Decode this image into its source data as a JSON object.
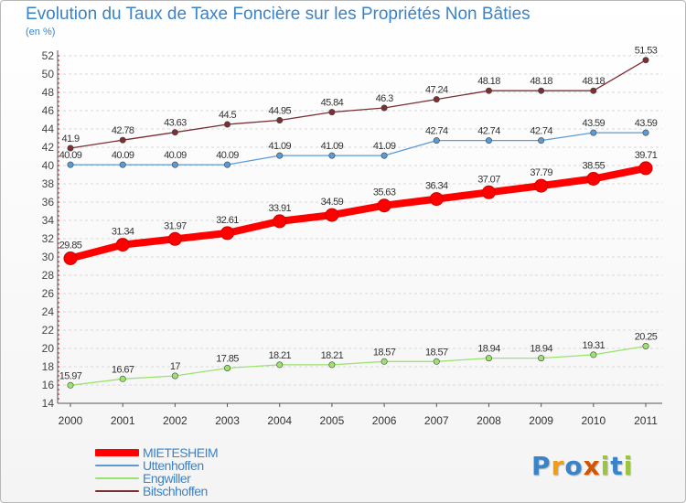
{
  "title": "Evolution du Taux de Taxe Foncière sur les Propriétés Non Bâties",
  "unit_label": "(en %)",
  "logo_text": "Proxiti",
  "colors": {
    "title": "#3a83c6",
    "grid": "#d8d8d8",
    "axis": "#555555"
  },
  "chart_data": {
    "type": "line",
    "x": [
      "2000",
      "2001",
      "2002",
      "2003",
      "2004",
      "2005",
      "2006",
      "2007",
      "2008",
      "2009",
      "2010",
      "2011"
    ],
    "ylim": [
      14,
      52
    ],
    "yticks": [
      14,
      16,
      18,
      20,
      22,
      24,
      26,
      28,
      30,
      32,
      34,
      36,
      38,
      40,
      42,
      44,
      46,
      48,
      50,
      52
    ],
    "grid": true,
    "legend_position": "bottom-left",
    "series": [
      {
        "name": "MIETESHEIM",
        "color": "#ff0000",
        "values": [
          29.85,
          31.34,
          31.97,
          32.61,
          33.91,
          34.59,
          35.63,
          36.34,
          37.07,
          37.79,
          38.55,
          39.71
        ],
        "labels": [
          "29.85",
          "31.34",
          "31.97",
          "32.61",
          "33.91",
          "34.59",
          "35.63",
          "36.34",
          "37.07",
          "37.79",
          "38.55",
          "39.71"
        ]
      },
      {
        "name": "Uttenhoffen",
        "color": "#5b9bd5",
        "values": [
          40.09,
          40.09,
          40.09,
          40.09,
          41.09,
          41.09,
          41.09,
          42.74,
          42.74,
          42.74,
          43.59,
          43.59
        ],
        "labels": [
          "40.09",
          "40.09",
          "40.09",
          "40.09",
          "41.09",
          "41.09",
          "41.09",
          "42.74",
          "42.74",
          "42.74",
          "43.59",
          "43.59"
        ]
      },
      {
        "name": "Engwiller",
        "color": "#9be36e",
        "values": [
          15.97,
          16.67,
          17,
          17.85,
          18.21,
          18.21,
          18.57,
          18.57,
          18.94,
          18.94,
          19.31,
          20.25
        ],
        "labels": [
          "15.97",
          "16.67",
          "17",
          "17.85",
          "18.21",
          "18.21",
          "18.57",
          "18.57",
          "18.94",
          "18.94",
          "19.31",
          "20.25"
        ]
      },
      {
        "name": "Bitschhoffen",
        "color": "#7b2e34",
        "values": [
          41.9,
          42.78,
          43.63,
          44.5,
          44.95,
          45.84,
          46.3,
          47.24,
          48.18,
          48.18,
          48.18,
          51.53
        ],
        "labels": [
          "41.9",
          "42.78",
          "43.63",
          "44.5",
          "44.95",
          "45.84",
          "46.3",
          "47.24",
          "48.18",
          "48.18",
          "48.18",
          "51.53"
        ]
      }
    ]
  }
}
